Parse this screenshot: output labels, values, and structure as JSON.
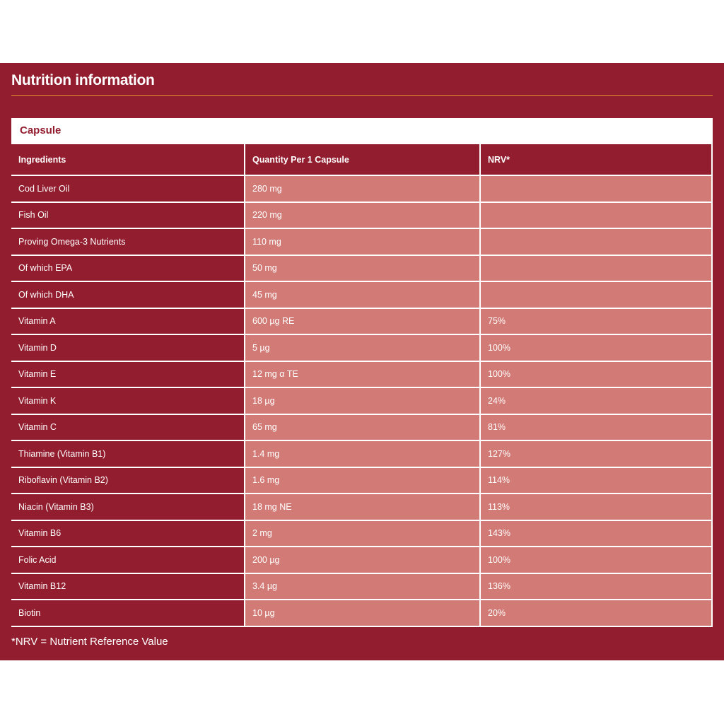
{
  "title": "Nutrition information",
  "section": "Capsule",
  "columns": [
    "Ingredients",
    "Quantity Per 1 Capsule",
    "NRV*"
  ],
  "rows": [
    [
      "Cod Liver Oil",
      "280 mg",
      ""
    ],
    [
      "Fish Oil",
      "220 mg",
      ""
    ],
    [
      "Proving Omega-3 Nutrients",
      "110 mg",
      ""
    ],
    [
      "Of which EPA",
      "50 mg",
      ""
    ],
    [
      "Of which DHA",
      "45 mg",
      ""
    ],
    [
      "Vitamin A",
      "600 µg RE",
      "75%"
    ],
    [
      "Vitamin D",
      "5 µg",
      "100%"
    ],
    [
      "Vitamin E",
      "12 mg α TE",
      "100%"
    ],
    [
      "Vitamin K",
      "18 µg",
      "24%"
    ],
    [
      "Vitamin C",
      "65 mg",
      "81%"
    ],
    [
      "Thiamine (Vitamin B1)",
      "1.4 mg",
      "127%"
    ],
    [
      "Riboflavin (Vitamin B2)",
      "1.6 mg",
      "114%"
    ],
    [
      "Niacin (Vitamin B3)",
      "18 mg NE",
      "113%"
    ],
    [
      "Vitamin B6",
      "2 mg",
      "143%"
    ],
    [
      "Folic Acid",
      "200 µg",
      "100%"
    ],
    [
      "Vitamin B12",
      "3.4 µg",
      "136%"
    ],
    [
      "Biotin",
      "10 µg",
      "20%"
    ]
  ],
  "footnote": "*NRV = Nutrient Reference Value",
  "colors": {
    "primary": "#921d2e",
    "cell": "#d27a75",
    "accent": "#e8952e"
  }
}
